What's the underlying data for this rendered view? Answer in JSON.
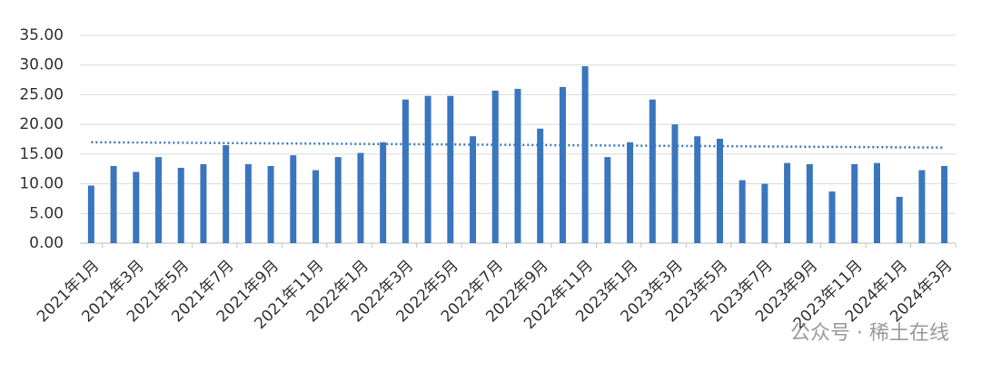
{
  "chart_data": {
    "type": "bar",
    "categories": [
      "2021年1月",
      null,
      "2021年3月",
      null,
      "2021年5月",
      null,
      "2021年7月",
      null,
      "2021年9月",
      null,
      "2021年11月",
      null,
      "2022年1月",
      null,
      "2022年3月",
      null,
      "2022年5月",
      null,
      "2022年7月",
      null,
      "2022年9月",
      null,
      "2022年11月",
      null,
      "2023年1月",
      null,
      "2023年3月",
      null,
      "2023年5月",
      null,
      "2023年7月",
      null,
      "2023年9月",
      null,
      "2023年11月",
      null,
      "2024年1月",
      null,
      "2024年3月"
    ],
    "values": [
      9.7,
      13.0,
      12.0,
      14.5,
      12.7,
      13.3,
      16.5,
      13.3,
      13.0,
      14.8,
      12.3,
      14.5,
      15.2,
      17.0,
      24.2,
      24.8,
      24.8,
      18.0,
      25.7,
      26.0,
      19.3,
      26.3,
      29.8,
      14.5,
      17.0,
      24.2,
      20.0,
      18.0,
      17.6,
      10.6,
      10.0,
      13.5,
      13.3,
      8.7,
      13.3,
      13.5,
      7.8,
      12.3,
      13.0
    ],
    "color": "#3a76bd",
    "trendline": [
      17.0,
      16.1
    ],
    "ylim": [
      0,
      35
    ],
    "yticks": [
      {
        "value": 0,
        "label": "0.00"
      },
      {
        "value": 5,
        "label": "5.00"
      },
      {
        "value": 10,
        "label": "10.00"
      },
      {
        "value": 15,
        "label": "15.00"
      },
      {
        "value": 20,
        "label": "20.00"
      },
      {
        "value": 25,
        "label": "25.00"
      },
      {
        "value": 30,
        "label": "30.00"
      },
      {
        "value": 35,
        "label": "35.00"
      }
    ],
    "grid": true,
    "watermark": "公众号 · 稀土在线"
  }
}
